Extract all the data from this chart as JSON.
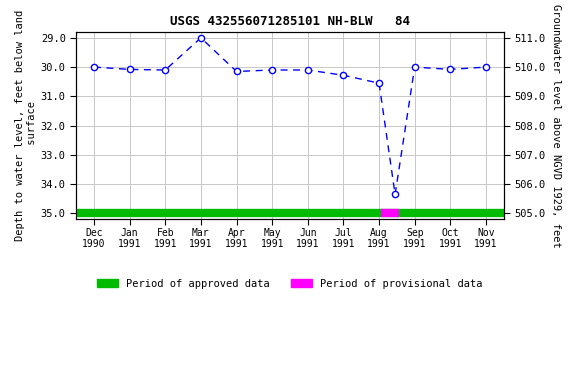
{
  "title": "USGS 432556071285101 NH-BLW   84",
  "ylabel_left": "Depth to water level, feet below land\n surface",
  "ylabel_right": "Groundwater level above NGVD 1929, feet",
  "xlabel_months": [
    "Dec\n1990",
    "Jan\n1991",
    "Feb\n1991",
    "Mar\n1991",
    "Apr\n1991",
    "May\n1991",
    "Jun\n1991",
    "Jul\n1991",
    "Aug\n1991",
    "Sep\n1991",
    "Oct\n1991",
    "Nov\n1991"
  ],
  "x_numeric": [
    0,
    1,
    2,
    3,
    4,
    5,
    6,
    7,
    8,
    8.45,
    9,
    10,
    11
  ],
  "y_depth": [
    30.0,
    30.08,
    30.1,
    29.0,
    30.15,
    30.1,
    30.1,
    30.28,
    30.55,
    34.35,
    30.0,
    30.08,
    30.0
  ],
  "ylim_left": [
    35.2,
    28.8
  ],
  "ylim_right": [
    504.8,
    511.2
  ],
  "yticks_left": [
    29.0,
    30.0,
    31.0,
    32.0,
    33.0,
    34.0,
    35.0
  ],
  "yticks_right": [
    511.0,
    510.0,
    509.0,
    508.0,
    507.0,
    506.0,
    505.0
  ],
  "xlim": [
    -0.5,
    11.5
  ],
  "line_color": "#0000ff",
  "marker_facecolor": "#ffffff",
  "marker_edgecolor": "#0000ff",
  "grid_color": "#c8c8c8",
  "bg_color": "#ffffff",
  "approved_color": "#00bb00",
  "provisional_color": "#ff00ff",
  "approved_xmin": -0.5,
  "approved_xmax": 11.5,
  "provisional_xmin": 8.05,
  "provisional_xmax": 8.55,
  "bar_y": 35.0,
  "bar_thickness": 6,
  "legend_approved": "Period of approved data",
  "legend_provisional": "Period of provisional data"
}
